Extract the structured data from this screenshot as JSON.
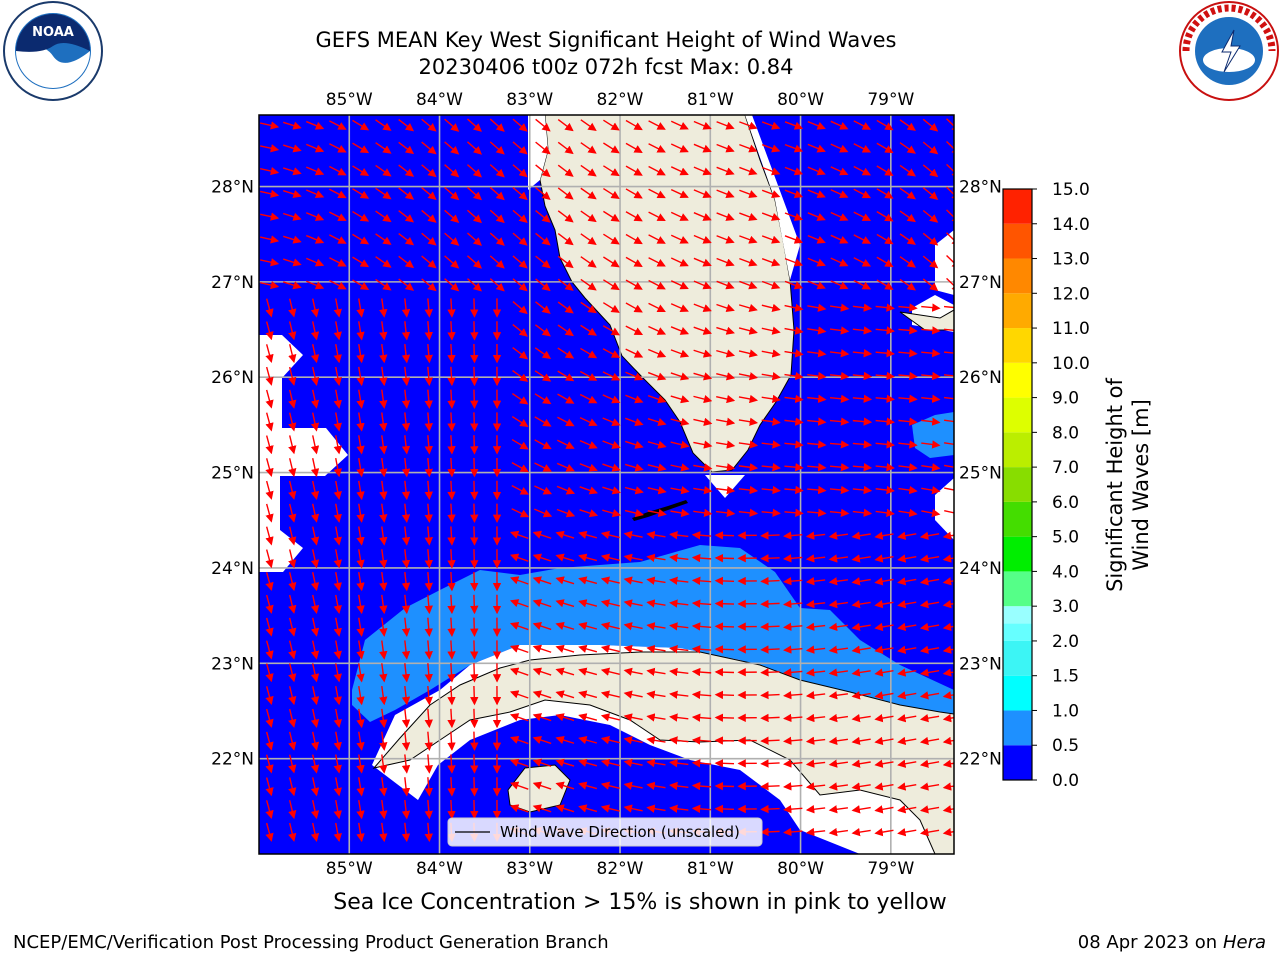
{
  "title": {
    "line1": "GEFS MEAN Key West Significant Height of Wind Waves",
    "line2": "20230406 t00z 072h fcst   Max: 0.84"
  },
  "logos": {
    "left": {
      "icon": "noaa-logo",
      "text": "NOAA"
    },
    "right": {
      "icon": "nws-logo",
      "text": "NATIONAL WEATHER SERVICE"
    }
  },
  "map": {
    "projection": "lat-lon",
    "lon_range": [
      -86.0,
      -78.3
    ],
    "lat_range": [
      21.0,
      28.75
    ],
    "lon_ticks": [
      "85°W",
      "84°W",
      "83°W",
      "82°W",
      "81°W",
      "80°W",
      "79°W"
    ],
    "lat_ticks": [
      "22°N",
      "23°N",
      "24°N",
      "25°N",
      "26°N",
      "27°N",
      "28°N"
    ],
    "grid": true,
    "ocean_color": "#0000ff",
    "higher_band_color": "#1e90ff",
    "land_color": "#eeecdc",
    "arrow_color": "#ff0000",
    "legend_label": "Wind Wave Direction (unscaled)",
    "legend_placement": "bottom-center"
  },
  "colorbar": {
    "label": "Significant Height of Wind Waves [m]",
    "ticks": [
      "0.0",
      "0.5",
      "1.0",
      "1.5",
      "2.0",
      "3.0",
      "4.0",
      "5.0",
      "6.0",
      "7.0",
      "8.0",
      "9.0",
      "10.0",
      "11.0",
      "12.0",
      "13.0",
      "14.0",
      "15.0"
    ],
    "colors": [
      "#0000ff",
      "#1e90ff",
      "#00ffff",
      "#3cf5f5",
      "#66ffff",
      "#99ffff",
      "#55ff88",
      "#00ee00",
      "#44dd00",
      "#88dd00",
      "#bbee00",
      "#ddff00",
      "#ffff00",
      "#ffd700",
      "#ffaa00",
      "#ff8800",
      "#ff5500",
      "#ff2200",
      "#ff0000"
    ]
  },
  "captions": {
    "sea_ice_note": "Sea Ice Concentration > 15% is shown in pink to yellow",
    "footer_left": "NCEP/EMC/Verification Post Processing Product Generation Branch",
    "footer_right_prefix": "08 Apr 2023 on ",
    "footer_right_host": "Hera"
  }
}
